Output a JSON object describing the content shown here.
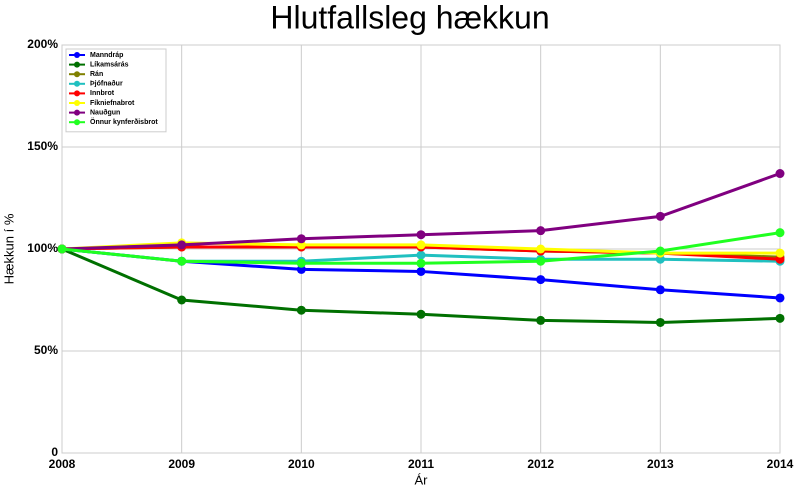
{
  "chart_data": {
    "type": "line",
    "title": "Hlutfallsleg hækkun",
    "x_label": "Ár",
    "y_label": "Hækkun í %",
    "x": [
      2008,
      2009,
      2010,
      2011,
      2012,
      2013,
      2014
    ],
    "xlim": [
      2008,
      2014
    ],
    "xticks": [
      2008,
      2009,
      2010,
      2011,
      2012,
      2013,
      2014
    ],
    "ylim": [
      0,
      200
    ],
    "yticks": [
      0,
      {
        "value": 50,
        "label": "50%"
      },
      {
        "value": 100,
        "label": "100%"
      },
      {
        "value": 150,
        "label": "150%"
      },
      {
        "value": 200,
        "label": "200%"
      }
    ],
    "grid": true,
    "legend": "upper left",
    "series": [
      {
        "name": "Manndráp",
        "color": "#0000ff",
        "values": [
          100,
          94,
          90,
          89,
          85,
          80,
          76
        ]
      },
      {
        "name": "Líkamsárás",
        "color": "#007000",
        "values": [
          100,
          75,
          70,
          68,
          65,
          64,
          66
        ]
      },
      {
        "name": "Rán",
        "color": "#808000",
        "values": [
          100,
          101,
          101,
          101,
          99,
          98,
          96
        ]
      },
      {
        "name": "Þjófnaður",
        "color": "#20c0c0",
        "values": [
          100,
          94,
          94,
          97,
          95,
          95,
          94
        ]
      },
      {
        "name": "Innbrot",
        "color": "#ff0000",
        "values": [
          100,
          101,
          101,
          101,
          99,
          98,
          95
        ]
      },
      {
        "name": "Fíkniefnabrot",
        "color": "#ffff00",
        "values": [
          100,
          103,
          102,
          102,
          100,
          98,
          98
        ]
      },
      {
        "name": "Nauðgun",
        "color": "#800080",
        "values": [
          100,
          102,
          105,
          107,
          109,
          116,
          137
        ]
      },
      {
        "name": "Önnur kynferðisbrot",
        "color": "#20ff20",
        "values": [
          100,
          94,
          93,
          93,
          94,
          99,
          108
        ]
      }
    ]
  }
}
